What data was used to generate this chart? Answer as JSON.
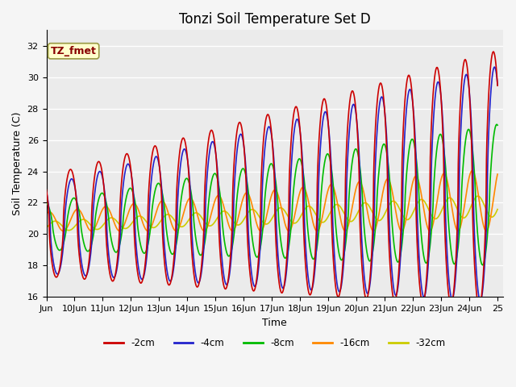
{
  "title": "Tonzi Soil Temperature Set D",
  "xlabel": "Time",
  "ylabel": "Soil Temperature (C)",
  "ylim": [
    16,
    33
  ],
  "yticks": [
    16,
    18,
    20,
    22,
    24,
    26,
    28,
    30,
    32
  ],
  "xlim_start": 9.0,
  "xlim_end": 25.2,
  "xtick_labels": [
    "Jun",
    "10Jun",
    "11Jun",
    "12Jun",
    "13Jun",
    "14Jun",
    "15Jun",
    "16Jun",
    "17Jun",
    "18Jun",
    "19Jun",
    "20Jun",
    "21Jun",
    "22Jun",
    "23Jun",
    "24Jun",
    "25"
  ],
  "xtick_positions": [
    9,
    10,
    11,
    12,
    13,
    14,
    15,
    16,
    17,
    18,
    19,
    20,
    21,
    22,
    23,
    24,
    25
  ],
  "legend_labels": [
    "-2cm",
    "-4cm",
    "-8cm",
    "-16cm",
    "-32cm"
  ],
  "legend_colors": [
    "#cc0000",
    "#2222cc",
    "#00bb00",
    "#ff8800",
    "#cccc00"
  ],
  "line_widths": [
    1.2,
    1.2,
    1.2,
    1.2,
    1.2
  ],
  "annotation_text": "TZ_fmet",
  "annotation_color": "#880000",
  "annotation_bg": "#ffffcc",
  "annotation_border": "#999944",
  "background_color": "#ebebeb",
  "grid_color": "#ffffff",
  "fig_bg_color": "#f5f5f5",
  "title_fontsize": 12,
  "label_fontsize": 9,
  "tick_fontsize": 8
}
